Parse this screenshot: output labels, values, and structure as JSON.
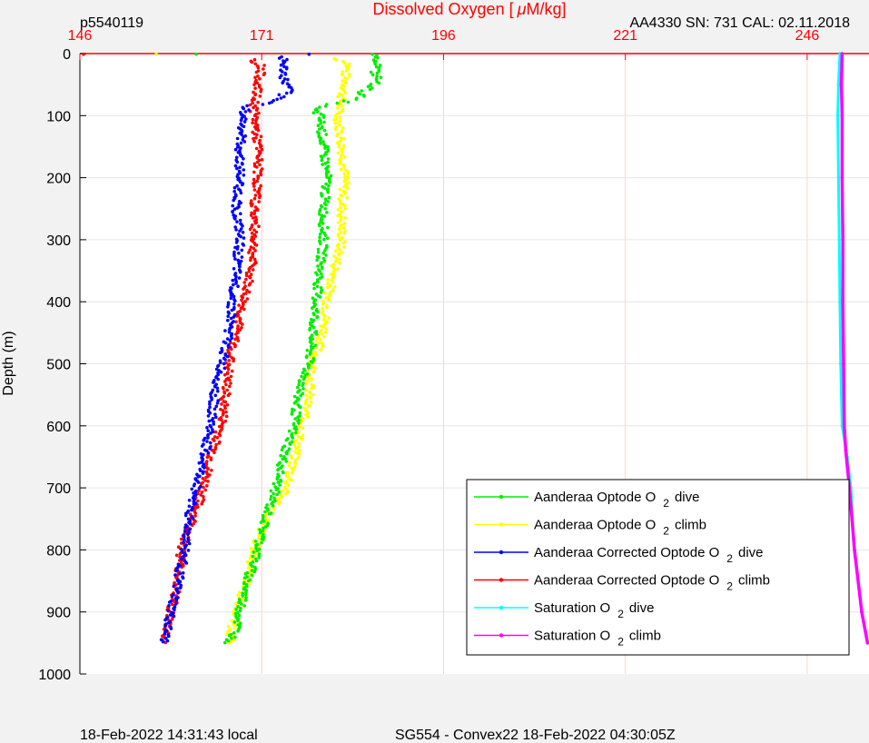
{
  "header": {
    "left": "p5540119",
    "right": "AA4330   SN: 731   CAL: 02.11.2018"
  },
  "footer": {
    "left": "18-Feb-2022 14:31:43 local",
    "right": "SG554 - Convex22 18-Feb-2022 04:30:05Z"
  },
  "colors": {
    "axis_top": "#ff0000",
    "grid": "#ffd0d0",
    "plot_bg": "#ffffff",
    "page_bg": "#f2f2f2"
  },
  "chart_data": {
    "type": "scatter",
    "title": "",
    "xlabel_pre": "Dissolved Oxygen [",
    "xlabel_mu": "μ",
    "xlabel_post": "M/kg]",
    "ylabel": "Depth (m)",
    "xlim": [
      146,
      254.5
    ],
    "ylim": [
      0,
      1000
    ],
    "y_reversed": true,
    "xticks": [
      146,
      171,
      196,
      221,
      246
    ],
    "yticks": [
      0,
      100,
      200,
      300,
      400,
      500,
      600,
      700,
      800,
      900,
      1000
    ],
    "grid": true,
    "legend_position": "bottom-right",
    "series": [
      {
        "name": "Aanderaa Optode O 2 dive",
        "legend": {
          "pre": "Aanderaa Optode O",
          "sub": "2",
          "post": "dive"
        },
        "color": "#00ee00",
        "style": "points",
        "points": [
          [
            162,
            1
          ],
          [
            186.5,
            1
          ],
          [
            186,
            5
          ],
          [
            187,
            10
          ],
          [
            187,
            20
          ],
          [
            186.5,
            30
          ],
          [
            187,
            40
          ],
          [
            186.5,
            50
          ],
          [
            186,
            55
          ],
          [
            185,
            60
          ],
          [
            184.5,
            70
          ],
          [
            183,
            75
          ],
          [
            182,
            80
          ],
          [
            180,
            82
          ],
          [
            178,
            90
          ],
          [
            179,
            100
          ],
          [
            179.5,
            150
          ],
          [
            180,
            200
          ],
          [
            179.5,
            250
          ],
          [
            179.5,
            300
          ],
          [
            179,
            350
          ],
          [
            178.5,
            400
          ],
          [
            178,
            450
          ],
          [
            177.5,
            500
          ],
          [
            176,
            550
          ],
          [
            175.5,
            600
          ],
          [
            174,
            650
          ],
          [
            173,
            700
          ],
          [
            171.5,
            750
          ],
          [
            170.5,
            800
          ],
          [
            169,
            850
          ],
          [
            168,
            900
          ],
          [
            167.5,
            930
          ],
          [
            166.5,
            950
          ]
        ]
      },
      {
        "name": "Aanderaa Optode O 2 climb",
        "legend": {
          "pre": "Aanderaa Optode O",
          "sub": "2",
          "post": "climb"
        },
        "color": "#ffff00",
        "style": "points",
        "points": [
          [
            156.5,
            1
          ],
          [
            181,
            8
          ],
          [
            183,
            15
          ],
          [
            182.5,
            30
          ],
          [
            182.5,
            50
          ],
          [
            182,
            70
          ],
          [
            181.5,
            100
          ],
          [
            182,
            150
          ],
          [
            182.5,
            200
          ],
          [
            182,
            250
          ],
          [
            182,
            300
          ],
          [
            181,
            350
          ],
          [
            180,
            400
          ],
          [
            179.5,
            450
          ],
          [
            178,
            500
          ],
          [
            177.5,
            550
          ],
          [
            176.5,
            600
          ],
          [
            175.5,
            650
          ],
          [
            174.5,
            700
          ],
          [
            171.5,
            750
          ],
          [
            170,
            800
          ],
          [
            169,
            850
          ],
          [
            167.5,
            900
          ],
          [
            166.5,
            950
          ]
        ]
      },
      {
        "name": "Aanderaa Corrected Optode O 2 dive",
        "legend": {
          "pre": "Aanderaa Corrected Optode O",
          "sub": "2",
          "post": "dive"
        },
        "color": "#0000ff",
        "style": "points",
        "points": [
          [
            177.5,
            1
          ],
          [
            174,
            5
          ],
          [
            174,
            20
          ],
          [
            174,
            40
          ],
          [
            174.5,
            55
          ],
          [
            175,
            60
          ],
          [
            174,
            65
          ],
          [
            172,
            80
          ],
          [
            169,
            85
          ],
          [
            168.5,
            100
          ],
          [
            168,
            150
          ],
          [
            168,
            200
          ],
          [
            167.5,
            250
          ],
          [
            168,
            300
          ],
          [
            167.5,
            350
          ],
          [
            167,
            400
          ],
          [
            166.5,
            450
          ],
          [
            165.5,
            500
          ],
          [
            164.5,
            550
          ],
          [
            164,
            600
          ],
          [
            163,
            650
          ],
          [
            162,
            700
          ],
          [
            161,
            750
          ],
          [
            160.5,
            800
          ],
          [
            159.5,
            850
          ],
          [
            158.5,
            900
          ],
          [
            157.5,
            950
          ]
        ]
      },
      {
        "name": "Aanderaa Corrected Optode O 2 climb",
        "legend": {
          "pre": "Aanderaa Corrected Optode O",
          "sub": "2",
          "post": "climb"
        },
        "color": "#ff0000",
        "style": "points",
        "points": [
          [
            146.5,
            1
          ],
          [
            169.5,
            10
          ],
          [
            171,
            20
          ],
          [
            170.5,
            50
          ],
          [
            170,
            80
          ],
          [
            170,
            100
          ],
          [
            170.5,
            150
          ],
          [
            170.5,
            200
          ],
          [
            170,
            250
          ],
          [
            170,
            300
          ],
          [
            169.5,
            350
          ],
          [
            168.5,
            400
          ],
          [
            167.5,
            450
          ],
          [
            166.5,
            500
          ],
          [
            166,
            550
          ],
          [
            165.5,
            600
          ],
          [
            164,
            650
          ],
          [
            163,
            700
          ],
          [
            161.5,
            750
          ],
          [
            160,
            800
          ],
          [
            159.5,
            850
          ],
          [
            158.5,
            900
          ],
          [
            157.5,
            950
          ]
        ]
      },
      {
        "name": "Saturation O 2 dive",
        "legend": {
          "pre": "Saturation O",
          "sub": "2",
          "post": "dive"
        },
        "color": "#00ffff",
        "style": "line",
        "points": [
          [
            250.5,
            0
          ],
          [
            250.3,
            50
          ],
          [
            250.2,
            100
          ],
          [
            250.3,
            200
          ],
          [
            250.4,
            300
          ],
          [
            250.5,
            400
          ],
          [
            250.6,
            500
          ],
          [
            250.8,
            600
          ],
          [
            251.5,
            650
          ],
          [
            252,
            700
          ],
          [
            252.5,
            800
          ],
          [
            253.5,
            900
          ],
          [
            254.3,
            950
          ]
        ]
      },
      {
        "name": "Saturation O 2 climb",
        "legend": {
          "pre": "Saturation O",
          "sub": "2",
          "post": "climb"
        },
        "color": "#ff00ff",
        "style": "line",
        "points": [
          [
            250.8,
            0
          ],
          [
            250.7,
            50
          ],
          [
            250.8,
            100
          ],
          [
            250.8,
            200
          ],
          [
            250.9,
            300
          ],
          [
            250.9,
            400
          ],
          [
            251,
            500
          ],
          [
            251.1,
            600
          ],
          [
            251.3,
            640
          ],
          [
            251.8,
            700
          ],
          [
            252.5,
            800
          ],
          [
            253.5,
            900
          ],
          [
            254.3,
            950
          ]
        ]
      }
    ]
  }
}
